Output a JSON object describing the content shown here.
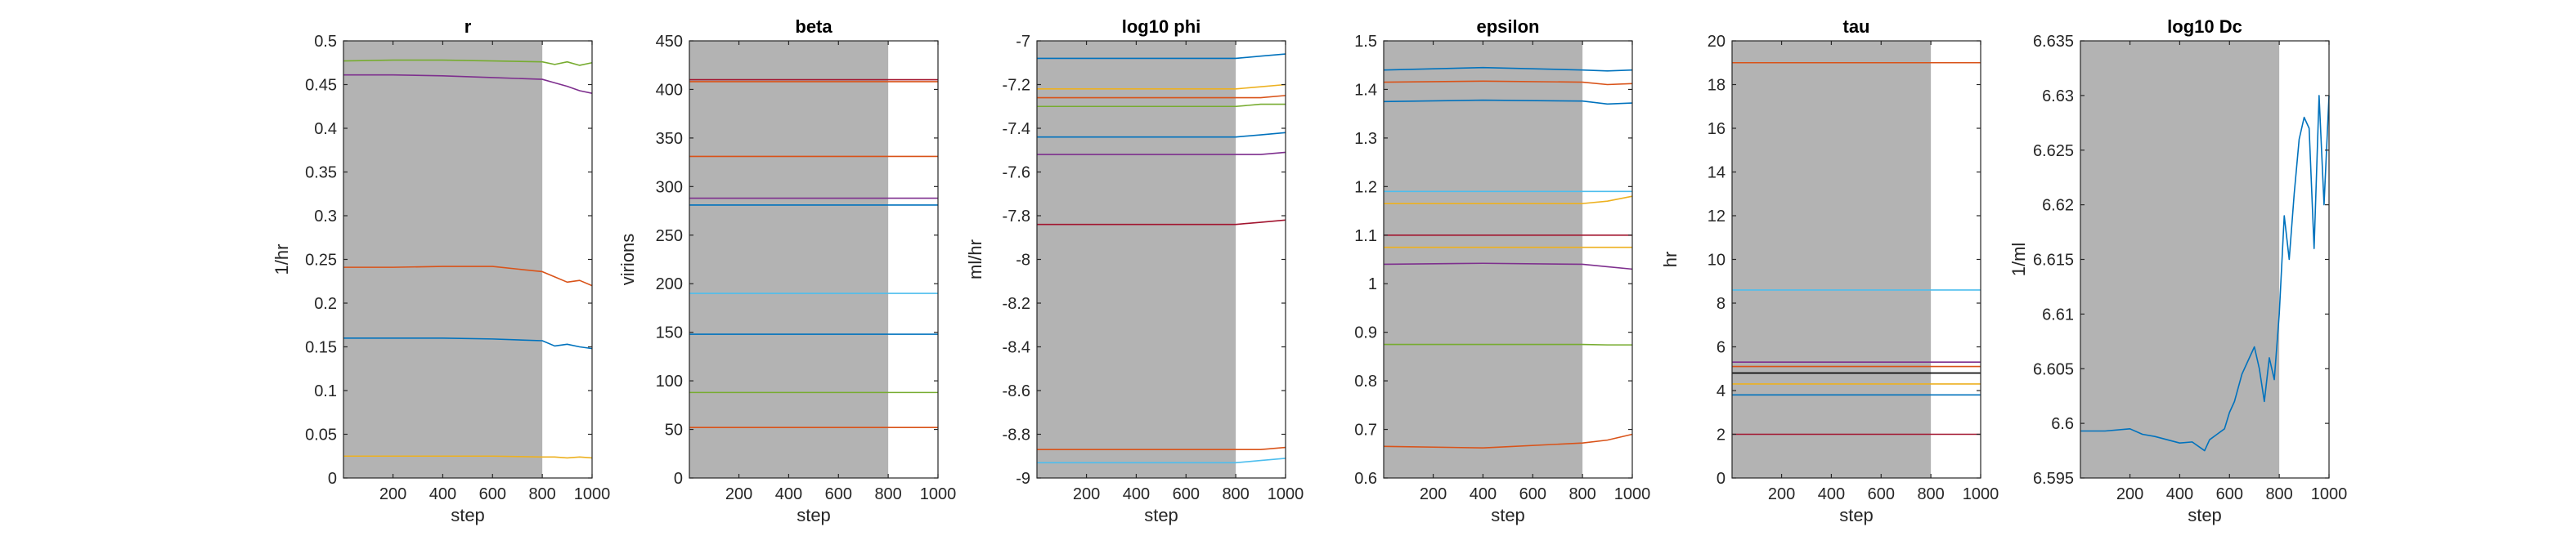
{
  "figure": {
    "background": "#ffffff",
    "shade_color": "#b3b3b3",
    "shade_range": [
      1,
      800
    ]
  },
  "chart_data": [
    {
      "type": "line",
      "title": "r",
      "xlabel": "step",
      "ylabel": "1/hr",
      "xlim": [
        1,
        1000
      ],
      "ylim": [
        0,
        0.5
      ],
      "xticks": [
        200,
        400,
        600,
        800,
        1000
      ],
      "xticklabels": [
        "200",
        "400",
        "600",
        "800",
        "1000"
      ],
      "yticks": [
        0,
        0.05,
        0.1,
        0.15,
        0.2,
        0.25,
        0.3,
        0.35,
        0.4,
        0.45,
        0.5
      ],
      "yticklabels": [
        "0",
        "0.05",
        "0.1",
        "0.15",
        "0.2",
        "0.25",
        "0.3",
        "0.35",
        "0.4",
        "0.45",
        "0.5"
      ],
      "grid": false,
      "series": [
        {
          "color": "#77ac30",
          "x": [
            1,
            200,
            400,
            600,
            800,
            850,
            900,
            950,
            1000
          ],
          "y": [
            0.477,
            0.478,
            0.478,
            0.477,
            0.476,
            0.473,
            0.476,
            0.472,
            0.475
          ]
        },
        {
          "color": "#7e2f8e",
          "x": [
            1,
            200,
            400,
            600,
            800,
            850,
            900,
            950,
            1000
          ],
          "y": [
            0.461,
            0.461,
            0.46,
            0.458,
            0.456,
            0.452,
            0.448,
            0.443,
            0.44
          ]
        },
        {
          "color": "#d95319",
          "x": [
            1,
            200,
            400,
            600,
            800,
            850,
            900,
            950,
            1000
          ],
          "y": [
            0.241,
            0.241,
            0.242,
            0.242,
            0.236,
            0.23,
            0.224,
            0.226,
            0.22
          ]
        },
        {
          "color": "#0072bd",
          "x": [
            1,
            200,
            400,
            600,
            800,
            850,
            900,
            950,
            1000
          ],
          "y": [
            0.16,
            0.16,
            0.16,
            0.159,
            0.157,
            0.151,
            0.153,
            0.15,
            0.148
          ]
        },
        {
          "color": "#edb120",
          "x": [
            1,
            200,
            400,
            600,
            800,
            850,
            900,
            950,
            1000
          ],
          "y": [
            0.025,
            0.025,
            0.025,
            0.025,
            0.024,
            0.024,
            0.023,
            0.024,
            0.023
          ]
        }
      ]
    },
    {
      "type": "line",
      "title": "beta",
      "xlabel": "step",
      "ylabel": "virions",
      "xlim": [
        1,
        1000
      ],
      "ylim": [
        0,
        450
      ],
      "xticks": [
        200,
        400,
        600,
        800,
        1000
      ],
      "xticklabels": [
        "200",
        "400",
        "600",
        "800",
        "1000"
      ],
      "yticks": [
        0,
        50,
        100,
        150,
        200,
        250,
        300,
        350,
        400,
        450
      ],
      "yticklabels": [
        "0",
        "50",
        "100",
        "150",
        "200",
        "250",
        "300",
        "350",
        "400",
        "450"
      ],
      "grid": false,
      "series": [
        {
          "color": "#a2142f",
          "x": [
            1,
            500,
            1000
          ],
          "y": [
            410,
            410,
            410
          ]
        },
        {
          "color": "#d95319",
          "x": [
            1,
            500,
            1000
          ],
          "y": [
            408,
            408,
            408
          ]
        },
        {
          "color": "#d95319",
          "x": [
            1,
            500,
            1000
          ],
          "y": [
            331,
            331,
            331
          ]
        },
        {
          "color": "#7e2f8e",
          "x": [
            1,
            500,
            1000
          ],
          "y": [
            288,
            288,
            288
          ]
        },
        {
          "color": "#0072bd",
          "x": [
            1,
            500,
            1000
          ],
          "y": [
            281,
            281,
            281
          ]
        },
        {
          "color": "#4dbeee",
          "x": [
            1,
            500,
            1000
          ],
          "y": [
            190,
            190,
            190
          ]
        },
        {
          "color": "#0072bd",
          "x": [
            1,
            500,
            1000
          ],
          "y": [
            148,
            148,
            148
          ]
        },
        {
          "color": "#77ac30",
          "x": [
            1,
            500,
            1000
          ],
          "y": [
            88,
            88,
            88
          ]
        },
        {
          "color": "#d95319",
          "x": [
            1,
            500,
            1000
          ],
          "y": [
            52,
            52,
            52
          ]
        }
      ]
    },
    {
      "type": "line",
      "title": "log10 phi",
      "xlabel": "step",
      "ylabel": "ml/hr",
      "xlim": [
        1,
        1000
      ],
      "ylim": [
        -9,
        -7
      ],
      "xticks": [
        200,
        400,
        600,
        800,
        1000
      ],
      "xticklabels": [
        "200",
        "400",
        "600",
        "800",
        "1000"
      ],
      "yticks": [
        -9,
        -8.8,
        -8.6,
        -8.4,
        -8.2,
        -8,
        -7.8,
        -7.6,
        -7.4,
        -7.2,
        -7
      ],
      "yticklabels": [
        "-9",
        "-8.8",
        "-8.6",
        "-8.4",
        "-8.2",
        "-8",
        "-7.8",
        "-7.6",
        "-7.4",
        "-7.2",
        "-7"
      ],
      "grid": false,
      "series": [
        {
          "color": "#0072bd",
          "x": [
            1,
            400,
            800,
            900,
            1000
          ],
          "y": [
            -7.08,
            -7.08,
            -7.08,
            -7.07,
            -7.06
          ]
        },
        {
          "color": "#edb120",
          "x": [
            1,
            400,
            800,
            900,
            1000
          ],
          "y": [
            -7.22,
            -7.22,
            -7.22,
            -7.21,
            -7.2
          ]
        },
        {
          "color": "#d95319",
          "x": [
            1,
            400,
            800,
            900,
            1000
          ],
          "y": [
            -7.26,
            -7.26,
            -7.26,
            -7.26,
            -7.25
          ]
        },
        {
          "color": "#77ac30",
          "x": [
            1,
            400,
            800,
            900,
            1000
          ],
          "y": [
            -7.3,
            -7.3,
            -7.3,
            -7.29,
            -7.29
          ]
        },
        {
          "color": "#0072bd",
          "x": [
            1,
            400,
            800,
            900,
            1000
          ],
          "y": [
            -7.44,
            -7.44,
            -7.44,
            -7.43,
            -7.42
          ]
        },
        {
          "color": "#7e2f8e",
          "x": [
            1,
            400,
            800,
            900,
            1000
          ],
          "y": [
            -7.52,
            -7.52,
            -7.52,
            -7.52,
            -7.51
          ]
        },
        {
          "color": "#a2142f",
          "x": [
            1,
            400,
            800,
            900,
            1000
          ],
          "y": [
            -7.84,
            -7.84,
            -7.84,
            -7.83,
            -7.82
          ]
        },
        {
          "color": "#d95319",
          "x": [
            1,
            400,
            800,
            900,
            1000
          ],
          "y": [
            -8.87,
            -8.87,
            -8.87,
            -8.87,
            -8.86
          ]
        },
        {
          "color": "#4dbeee",
          "x": [
            1,
            400,
            800,
            900,
            1000
          ],
          "y": [
            -8.93,
            -8.93,
            -8.93,
            -8.92,
            -8.91
          ]
        }
      ]
    },
    {
      "type": "line",
      "title": "epsilon",
      "xlabel": "step",
      "ylabel": "",
      "xlim": [
        1,
        1000
      ],
      "ylim": [
        0.6,
        1.5
      ],
      "xticks": [
        200,
        400,
        600,
        800,
        1000
      ],
      "xticklabels": [
        "200",
        "400",
        "600",
        "800",
        "1000"
      ],
      "yticks": [
        0.6,
        0.7,
        0.8,
        0.9,
        1,
        1.1,
        1.2,
        1.3,
        1.4,
        1.5
      ],
      "yticklabels": [
        "0.6",
        "0.7",
        "0.8",
        "0.9",
        "1",
        "1.1",
        "1.2",
        "1.3",
        "1.4",
        "1.5"
      ],
      "grid": false,
      "series": [
        {
          "color": "#0072bd",
          "x": [
            1,
            400,
            800,
            900,
            1000
          ],
          "y": [
            1.44,
            1.445,
            1.44,
            1.438,
            1.44
          ]
        },
        {
          "color": "#d95319",
          "x": [
            1,
            400,
            800,
            900,
            1000
          ],
          "y": [
            1.415,
            1.417,
            1.415,
            1.41,
            1.412
          ]
        },
        {
          "color": "#0072bd",
          "x": [
            1,
            400,
            800,
            900,
            1000
          ],
          "y": [
            1.375,
            1.378,
            1.376,
            1.37,
            1.372
          ]
        },
        {
          "color": "#4dbeee",
          "x": [
            1,
            400,
            800,
            900,
            1000
          ],
          "y": [
            1.19,
            1.19,
            1.19,
            1.19,
            1.19
          ]
        },
        {
          "color": "#edb120",
          "x": [
            1,
            400,
            800,
            900,
            1000
          ],
          "y": [
            1.165,
            1.165,
            1.165,
            1.17,
            1.18
          ]
        },
        {
          "color": "#a2142f",
          "x": [
            1,
            400,
            800,
            900,
            1000
          ],
          "y": [
            1.1,
            1.1,
            1.1,
            1.1,
            1.1
          ]
        },
        {
          "color": "#edb120",
          "x": [
            1,
            400,
            800,
            900,
            1000
          ],
          "y": [
            1.075,
            1.075,
            1.075,
            1.075,
            1.075
          ]
        },
        {
          "color": "#7e2f8e",
          "x": [
            1,
            400,
            800,
            900,
            1000
          ],
          "y": [
            1.04,
            1.042,
            1.04,
            1.035,
            1.03
          ]
        },
        {
          "color": "#77ac30",
          "x": [
            1,
            400,
            800,
            900,
            1000
          ],
          "y": [
            0.875,
            0.875,
            0.875,
            0.874,
            0.874
          ]
        },
        {
          "color": "#d95319",
          "x": [
            1,
            400,
            800,
            900,
            1000
          ],
          "y": [
            0.665,
            0.662,
            0.672,
            0.678,
            0.69
          ]
        }
      ]
    },
    {
      "type": "line",
      "title": "tau",
      "xlabel": "step",
      "ylabel": "hr",
      "xlim": [
        1,
        1000
      ],
      "ylim": [
        0,
        20
      ],
      "xticks": [
        200,
        400,
        600,
        800,
        1000
      ],
      "xticklabels": [
        "200",
        "400",
        "600",
        "800",
        "1000"
      ],
      "yticks": [
        0,
        2,
        4,
        6,
        8,
        10,
        12,
        14,
        16,
        18,
        20
      ],
      "yticklabels": [
        "0",
        "2",
        "4",
        "6",
        "8",
        "10",
        "12",
        "14",
        "16",
        "18",
        "20"
      ],
      "grid": false,
      "series": [
        {
          "color": "#d95319",
          "x": [
            1,
            500,
            1000
          ],
          "y": [
            19.0,
            19.0,
            19.0
          ]
        },
        {
          "color": "#4dbeee",
          "x": [
            1,
            500,
            1000
          ],
          "y": [
            8.6,
            8.6,
            8.6
          ]
        },
        {
          "color": "#7e2f8e",
          "x": [
            1,
            500,
            1000
          ],
          "y": [
            5.3,
            5.3,
            5.3
          ]
        },
        {
          "color": "#d95319",
          "x": [
            1,
            500,
            1000
          ],
          "y": [
            5.1,
            5.1,
            5.1
          ]
        },
        {
          "color": "#000000",
          "x": [
            1,
            500,
            1000
          ],
          "y": [
            4.8,
            4.8,
            4.8
          ]
        },
        {
          "color": "#edb120",
          "x": [
            1,
            500,
            1000
          ],
          "y": [
            4.3,
            4.3,
            4.3
          ]
        },
        {
          "color": "#0072bd",
          "x": [
            1,
            500,
            1000
          ],
          "y": [
            3.8,
            3.8,
            3.8
          ]
        },
        {
          "color": "#a2142f",
          "x": [
            1,
            500,
            1000
          ],
          "y": [
            2.0,
            2.0,
            2.0
          ]
        }
      ]
    },
    {
      "type": "line",
      "title": "log10 Dc",
      "xlabel": "step",
      "ylabel": "1/ml",
      "xlim": [
        1,
        1000
      ],
      "ylim": [
        6.595,
        6.635
      ],
      "xticks": [
        200,
        400,
        600,
        800,
        1000
      ],
      "xticklabels": [
        "200",
        "400",
        "600",
        "800",
        "1000"
      ],
      "yticks": [
        6.595,
        6.6,
        6.605,
        6.61,
        6.615,
        6.62,
        6.625,
        6.63,
        6.635
      ],
      "yticklabels": [
        "6.595",
        "6.6",
        "6.605",
        "6.61",
        "6.615",
        "6.62",
        "6.625",
        "6.63",
        "6.635"
      ],
      "grid": false,
      "series": [
        {
          "color": "#0072bd",
          "x": [
            1,
            100,
            200,
            250,
            300,
            350,
            400,
            450,
            500,
            520,
            550,
            580,
            600,
            620,
            650,
            680,
            700,
            720,
            740,
            760,
            780,
            800,
            820,
            840,
            860,
            880,
            900,
            920,
            940,
            960,
            980,
            1000
          ],
          "y": [
            6.5993,
            6.5993,
            6.5995,
            6.599,
            6.5988,
            6.5985,
            6.5982,
            6.5983,
            6.5975,
            6.5985,
            6.599,
            6.5995,
            6.601,
            6.602,
            6.6045,
            6.606,
            6.607,
            6.605,
            6.602,
            6.606,
            6.604,
            6.61,
            6.619,
            6.615,
            6.621,
            6.626,
            6.628,
            6.627,
            6.616,
            6.63,
            6.62,
            6.63
          ]
        }
      ]
    }
  ]
}
